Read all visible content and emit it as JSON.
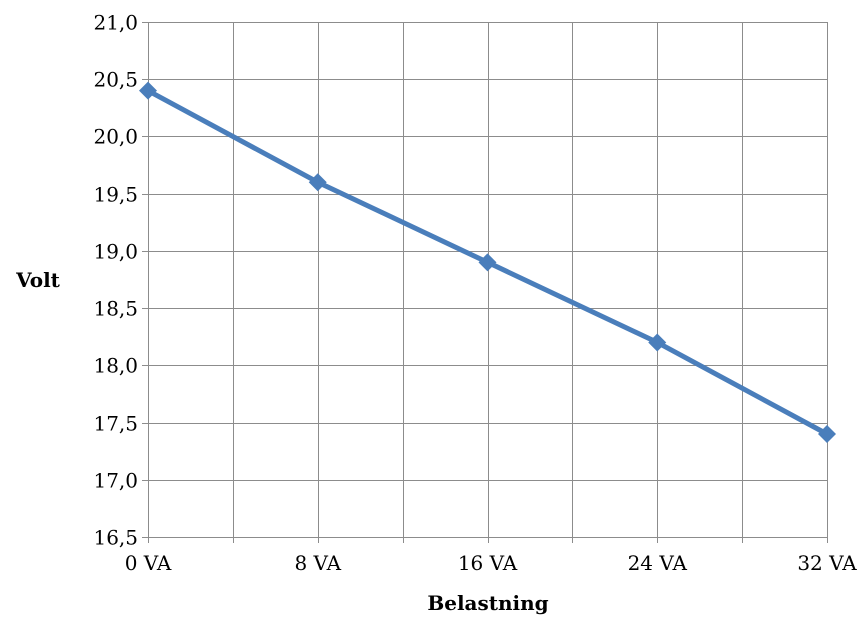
{
  "chart_data": {
    "type": "line",
    "title": "",
    "xlabel": "Belastning",
    "ylabel": "Volt",
    "x": [
      0,
      8,
      16,
      24,
      32
    ],
    "x_tick_labels": [
      "0 VA",
      "8 VA",
      "16 VA",
      "24 VA",
      "32 VA"
    ],
    "y_tick_labels": [
      "21,0",
      "20,5",
      "20,0",
      "19,5",
      "19,0",
      "18,5",
      "18,0",
      "17,5",
      "17,0",
      "16,5"
    ],
    "ylim": [
      16.5,
      21.0
    ],
    "xlim": [
      0,
      32
    ],
    "y_step": 0.5,
    "x_grid_step": 4,
    "grid": true,
    "legend": "none",
    "series": [
      {
        "values": [
          20.4,
          19.6,
          18.9,
          18.2,
          17.4
        ],
        "color": "#4a7ebb",
        "marker": "diamond"
      }
    ]
  }
}
